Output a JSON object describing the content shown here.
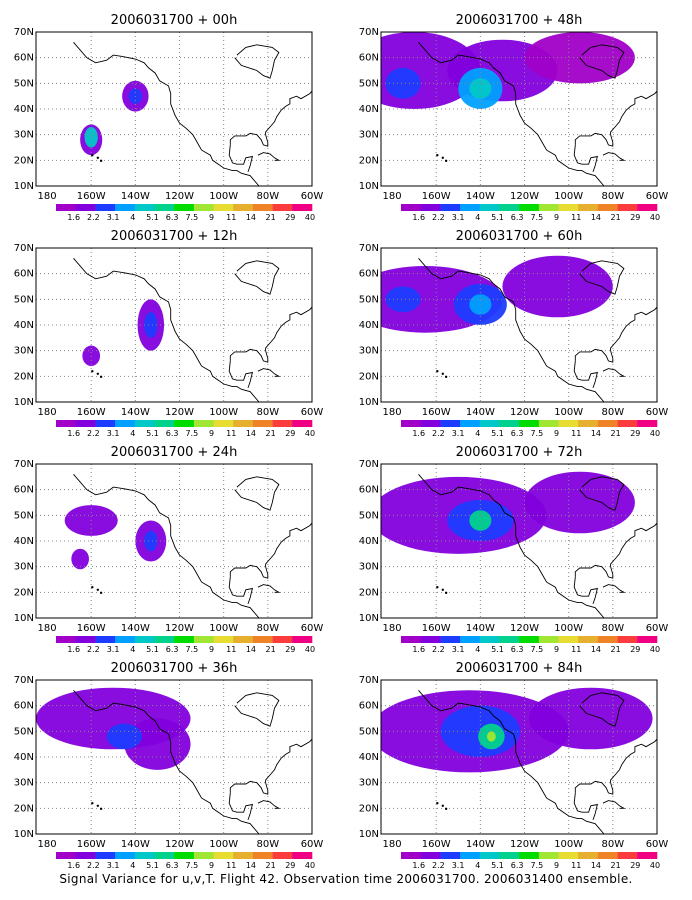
{
  "caption": "Signal Variance for u,v,T. Flight 42. Observation time 2006031700. 2006031400 ensemble.",
  "map": {
    "lon_ticks": [
      "180",
      "160W",
      "140W",
      "120W",
      "100W",
      "80W",
      "60W"
    ],
    "lat_ticks": [
      "10N",
      "20N",
      "30N",
      "40N",
      "50N",
      "60N",
      "70N"
    ],
    "lon_range": [
      -185,
      -60
    ],
    "lat_range": [
      10,
      70
    ]
  },
  "colorbar": {
    "labels": [
      "1.6",
      "2.2",
      "3.1",
      "4",
      "5.1",
      "6.3",
      "7.5",
      "9",
      "11",
      "14",
      "21",
      "29",
      "40"
    ],
    "colors": [
      "#a000c8",
      "#8200dc",
      "#1e3cff",
      "#00a0ff",
      "#00c8c8",
      "#00d28c",
      "#00dc00",
      "#a0e632",
      "#e6dc32",
      "#e6af2d",
      "#f08228",
      "#fa3c3c",
      "#f00082"
    ]
  },
  "panels": [
    {
      "title": "2006031700 + 00h",
      "blobs": [
        {
          "lon": -160,
          "lat": 28,
          "rlon": 5,
          "rlat": 6,
          "level": 1
        },
        {
          "lon": -160,
          "lat": 29,
          "rlon": 3,
          "rlat": 4,
          "level": 4
        },
        {
          "lon": -140,
          "lat": 45,
          "rlon": 6,
          "rlat": 6,
          "level": 1
        },
        {
          "lon": -140,
          "lat": 45,
          "rlon": 3,
          "rlat": 3,
          "level": 2
        }
      ]
    },
    {
      "title": "2006031700 + 48h",
      "blobs": [
        {
          "lon": -170,
          "lat": 55,
          "rlon": 30,
          "rlat": 15,
          "level": 1
        },
        {
          "lon": -130,
          "lat": 55,
          "rlon": 25,
          "rlat": 12,
          "level": 1
        },
        {
          "lon": -95,
          "lat": 60,
          "rlon": 25,
          "rlat": 10,
          "level": 0
        },
        {
          "lon": -140,
          "lat": 48,
          "rlon": 10,
          "rlat": 8,
          "level": 3
        },
        {
          "lon": -140,
          "lat": 48,
          "rlon": 5,
          "rlat": 4,
          "level": 4
        },
        {
          "lon": -175,
          "lat": 50,
          "rlon": 8,
          "rlat": 6,
          "level": 2
        }
      ]
    },
    {
      "title": "2006031700 + 12h",
      "blobs": [
        {
          "lon": -160,
          "lat": 28,
          "rlon": 4,
          "rlat": 4,
          "level": 1
        },
        {
          "lon": -133,
          "lat": 40,
          "rlon": 6,
          "rlat": 10,
          "level": 1
        },
        {
          "lon": -133,
          "lat": 40,
          "rlon": 3,
          "rlat": 5,
          "level": 2
        }
      ]
    },
    {
      "title": "2006031700 + 60h",
      "blobs": [
        {
          "lon": -165,
          "lat": 50,
          "rlon": 35,
          "rlat": 13,
          "level": 1
        },
        {
          "lon": -105,
          "lat": 55,
          "rlon": 25,
          "rlat": 12,
          "level": 1
        },
        {
          "lon": -140,
          "lat": 48,
          "rlon": 12,
          "rlat": 8,
          "level": 2
        },
        {
          "lon": -175,
          "lat": 50,
          "rlon": 8,
          "rlat": 5,
          "level": 2
        },
        {
          "lon": -140,
          "lat": 48,
          "rlon": 5,
          "rlat": 4,
          "level": 3
        }
      ]
    },
    {
      "title": "2006031700 + 24h",
      "blobs": [
        {
          "lon": -160,
          "lat": 48,
          "rlon": 12,
          "rlat": 6,
          "level": 1
        },
        {
          "lon": -133,
          "lat": 40,
          "rlon": 7,
          "rlat": 8,
          "level": 1
        },
        {
          "lon": -133,
          "lat": 40,
          "rlon": 3,
          "rlat": 4,
          "level": 2
        },
        {
          "lon": -165,
          "lat": 33,
          "rlon": 4,
          "rlat": 4,
          "level": 1
        }
      ]
    },
    {
      "title": "2006031700 + 72h",
      "blobs": [
        {
          "lon": -150,
          "lat": 50,
          "rlon": 40,
          "rlat": 15,
          "level": 1
        },
        {
          "lon": -95,
          "lat": 55,
          "rlon": 25,
          "rlat": 12,
          "level": 1
        },
        {
          "lon": -140,
          "lat": 48,
          "rlon": 15,
          "rlat": 8,
          "level": 2
        },
        {
          "lon": -140,
          "lat": 48,
          "rlon": 5,
          "rlat": 4,
          "level": 5
        }
      ]
    },
    {
      "title": "2006031700 + 36h",
      "blobs": [
        {
          "lon": -150,
          "lat": 55,
          "rlon": 35,
          "rlat": 12,
          "level": 1
        },
        {
          "lon": -130,
          "lat": 45,
          "rlon": 15,
          "rlat": 10,
          "level": 1
        },
        {
          "lon": -145,
          "lat": 48,
          "rlon": 8,
          "rlat": 5,
          "level": 2
        }
      ]
    },
    {
      "title": "2006031700 + 84h",
      "blobs": [
        {
          "lon": -145,
          "lat": 50,
          "rlon": 45,
          "rlat": 16,
          "level": 1
        },
        {
          "lon": -90,
          "lat": 55,
          "rlon": 28,
          "rlat": 12,
          "level": 1
        },
        {
          "lon": -140,
          "lat": 50,
          "rlon": 18,
          "rlat": 10,
          "level": 2
        },
        {
          "lon": -135,
          "lat": 48,
          "rlon": 6,
          "rlat": 5,
          "level": 5
        },
        {
          "lon": -135,
          "lat": 48,
          "rlon": 2,
          "rlat": 2,
          "level": 7
        }
      ]
    }
  ]
}
